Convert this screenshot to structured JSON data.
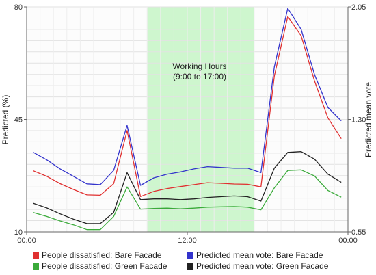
{
  "chart_data": {
    "type": "line",
    "annotation": {
      "line1": "Working Hours",
      "line2": "(9:00 to 17:00)",
      "shaded_x_range": [
        9,
        17
      ],
      "shade_color": "#c6f5c6"
    },
    "x_ticks": [
      {
        "x": 0,
        "label": "00:00"
      },
      {
        "x": 12,
        "label": "12:00"
      },
      {
        "x": 24,
        "label": "00:00"
      }
    ],
    "x_range": [
      0,
      24
    ],
    "y_left": {
      "label": "Predicted (%)",
      "range": [
        10,
        80
      ],
      "ticks": [
        {
          "v": 10,
          "label": "10"
        },
        {
          "v": 45,
          "label": "45"
        },
        {
          "v": 80,
          "label": "80"
        }
      ]
    },
    "y_right": {
      "label": "Predicted mean vote",
      "range": [
        0.55,
        2.05
      ],
      "ticks": [
        {
          "v": 0.55,
          "label": "0.55"
        },
        {
          "v": 1.3,
          "label": "1.30"
        },
        {
          "v": 2.05,
          "label": "2.05"
        }
      ]
    },
    "grid": true,
    "x": [
      0.5,
      1.5,
      2.5,
      3.5,
      4.5,
      5.5,
      6.5,
      7.5,
      8.5,
      9.5,
      10.5,
      11.5,
      12.5,
      13.5,
      14.5,
      15.5,
      16.5,
      17.5,
      18.5,
      19.5,
      20.5,
      21.5,
      22.5,
      23.5
    ],
    "series": [
      {
        "name": "People dissatisfied: Bare Facade",
        "color": "#e03030",
        "values": [
          29,
          27.3,
          25,
          23.2,
          21.5,
          21.4,
          25,
          41.5,
          21,
          22.6,
          23.5,
          24.1,
          24.7,
          25.3,
          25.1,
          24.9,
          24.8,
          24,
          58.5,
          77,
          71,
          57,
          45.5,
          39
        ]
      },
      {
        "name": "Predicted mean vote: Bare Facade",
        "color": "#3333cc",
        "values": [
          1.08,
          1.03,
          0.97,
          0.92,
          0.87,
          0.865,
          0.96,
          1.26,
          0.86,
          0.91,
          0.935,
          0.95,
          0.97,
          0.985,
          0.98,
          0.975,
          0.975,
          0.945,
          1.65,
          2.04,
          1.9,
          1.6,
          1.38,
          1.29
        ]
      },
      {
        "name": "Predicted mean vote: Green Facade",
        "color": "#222222",
        "values": [
          0.74,
          0.71,
          0.67,
          0.635,
          0.605,
          0.605,
          0.68,
          0.945,
          0.765,
          0.77,
          0.77,
          0.765,
          0.77,
          0.78,
          0.785,
          0.79,
          0.785,
          0.755,
          0.975,
          1.08,
          1.085,
          1.035,
          0.935,
          0.88
        ]
      },
      {
        "name": "People dissatisfied: Green Facade",
        "color": "#3aaa3a",
        "values": [
          16,
          14.8,
          13.4,
          12.2,
          10.7,
          10.7,
          14.8,
          24,
          17.1,
          17.3,
          17.4,
          17.2,
          17.4,
          17.7,
          17.8,
          17.9,
          17.7,
          16.9,
          23.7,
          29.1,
          29.3,
          27.4,
          22.9,
          20.8
        ]
      }
    ]
  },
  "legend": [
    {
      "label": "People dissatisfied: Bare Facade",
      "color": "#e03030"
    },
    {
      "label": "Predicted mean vote: Bare Facade",
      "color": "#3333cc"
    },
    {
      "label": "People dissatisfied: Green Facade",
      "color": "#3aaa3a"
    },
    {
      "label": "Predicted mean vote: Green Facade",
      "color": "#222222"
    }
  ]
}
